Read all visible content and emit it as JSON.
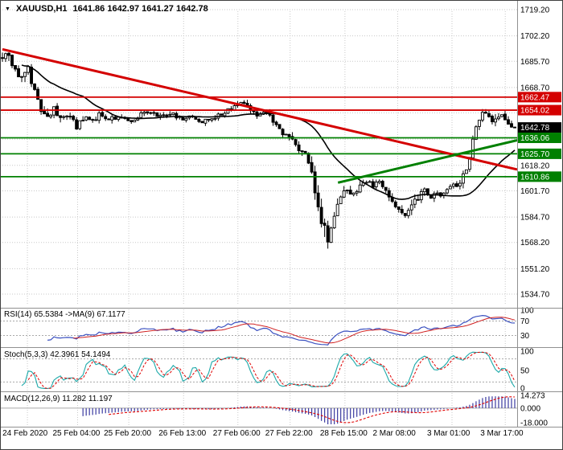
{
  "header": {
    "symbol": "XAUUSD,H1",
    "ohlc": "1641.86 1642.97 1641.27 1642.78"
  },
  "colors": {
    "up": "#ffffff",
    "down": "#000000",
    "wick": "#000000",
    "ma": "#000000",
    "resistance": "#d40000",
    "support": "#008000",
    "badge_current_bg": "#000000",
    "badge_text": "#ffffff",
    "rsi": "#3a50c0",
    "rsi_ma": "#d02020",
    "stoch_k": "#1ca9a9",
    "stoch_d": "#e00000",
    "macd_hist": "#3a3aa0",
    "macd_signal": "#e00000",
    "grid": "#c8c8c8",
    "level_dash": "#a8a8a8",
    "separator": "#909090",
    "border": "#404040"
  },
  "price_axis": {
    "grid_prices": [
      1719.2,
      1702.2,
      1685.7,
      1668.7,
      1652.2,
      1635.2,
      1618.2,
      1601.7,
      1584.7,
      1568.2,
      1551.2,
      1534.7
    ],
    "labels": [
      {
        "text": "1719.20",
        "price": 1719.2
      },
      {
        "text": "1702.20",
        "price": 1702.2
      },
      {
        "text": "1685.70",
        "price": 1685.7
      },
      {
        "text": "1668.70",
        "price": 1668.7
      },
      {
        "text": "1618.20",
        "price": 1618.2
      },
      {
        "text": "1601.70",
        "price": 1601.7
      },
      {
        "text": "1584.70",
        "price": 1584.7
      },
      {
        "text": "1568.20",
        "price": 1568.2
      },
      {
        "text": "1551.20",
        "price": 1551.2
      },
      {
        "text": "1534.70",
        "price": 1534.7
      }
    ],
    "badges": [
      {
        "text": "1662.47",
        "price": 1662.47,
        "bg": "#d40000",
        "role": "resistance"
      },
      {
        "text": "1654.02",
        "price": 1654.02,
        "bg": "#d40000",
        "role": "resistance"
      },
      {
        "text": "1642.78",
        "price": 1642.78,
        "bg": "#000000",
        "role": "current-price"
      },
      {
        "text": "1636.06",
        "price": 1636.06,
        "bg": "#008000",
        "role": "support"
      },
      {
        "text": "1625.70",
        "price": 1625.7,
        "bg": "#008000",
        "role": "support"
      },
      {
        "text": "1610.86",
        "price": 1610.86,
        "bg": "#008000",
        "role": "support"
      }
    ]
  },
  "time_axis": {
    "labels": [
      "24 Feb 2020",
      "25 Feb 04:00",
      "25 Feb 20:00",
      "26 Feb 13:00",
      "27 Feb 06:00",
      "27 Feb 22:00",
      "28 Feb 15:00",
      "2 Mar 08:00",
      "3 Mar 01:00",
      "3 Mar 17:00"
    ],
    "fractions": [
      0.053,
      0.15,
      0.249,
      0.355,
      0.46,
      0.561,
      0.667,
      0.769,
      0.874,
      0.977
    ]
  },
  "indicators": {
    "rsi": {
      "label": "RSI(14) 65.5384 ->MA(9) 67.1177",
      "value": 65.5384,
      "ma_value": 67.1177,
      "period": 14,
      "ma_period": 9,
      "levels": [
        30,
        70
      ],
      "axis_labels": [
        {
          "text": "100",
          "value": 100
        },
        {
          "text": "70",
          "value": 70
        },
        {
          "text": "30",
          "value": 30
        }
      ]
    },
    "stoch": {
      "label": "Stoch(5,3,3) 42.3961 54.1494",
      "k_value": 42.3961,
      "d_value": 54.1494,
      "params": [
        5,
        3,
        3
      ],
      "levels": [
        20,
        80
      ],
      "axis_labels": [
        {
          "text": "100",
          "value": 100
        },
        {
          "text": "50",
          "value": 50
        },
        {
          "text": "0",
          "value": 0
        }
      ]
    },
    "macd": {
      "label": "MACD(12,26,9) 11.282 11.197",
      "value": 11.282,
      "signal_value": 11.197,
      "params": [
        12,
        26,
        9
      ],
      "range": [
        -18,
        14.273
      ],
      "axis_labels": [
        {
          "text": "14.273",
          "value": 14.273
        },
        {
          "text": "0.000",
          "value": 0
        },
        {
          "text": "-18.000",
          "value": -18
        }
      ]
    }
  },
  "chart_data": {
    "type": "candlestick",
    "symbol": "XAUUSD",
    "timeframe": "H1",
    "title": "XAUUSD,H1 1641.86 1642.97 1641.27 1642.78",
    "current_ohlc": {
      "open": 1641.86,
      "high": 1642.97,
      "low": 1641.27,
      "close": 1642.78
    },
    "visible_price_range": [
      1534.7,
      1719.2
    ],
    "bars_visible": 160,
    "time_range": [
      "24 Feb 2020",
      "3 Mar 17:00"
    ],
    "resistance_levels": [
      1662.47,
      1654.02
    ],
    "support_levels": [
      1636.06,
      1625.7,
      1610.86
    ],
    "trendlines": [
      {
        "role": "descending-resistance",
        "color": "#d40000",
        "width": 3,
        "points_frac_price": [
          [
            0,
            1693.5
          ],
          [
            1.01,
            1615.5
          ]
        ]
      },
      {
        "role": "ascending-support",
        "color": "#008000",
        "width": 3,
        "points_frac_price": [
          [
            0.655,
            1607
          ],
          [
            1.02,
            1634.5
          ]
        ]
      }
    ],
    "price_path": [
      [
        0.0,
        1688
      ],
      [
        0.01,
        1692
      ],
      [
        0.022,
        1681
      ],
      [
        0.035,
        1677
      ],
      [
        0.048,
        1683
      ],
      [
        0.06,
        1670
      ],
      [
        0.072,
        1656
      ],
      [
        0.085,
        1649
      ],
      [
        0.1,
        1655
      ],
      [
        0.115,
        1647
      ],
      [
        0.13,
        1651
      ],
      [
        0.145,
        1643
      ],
      [
        0.16,
        1650
      ],
      [
        0.175,
        1646
      ],
      [
        0.19,
        1652
      ],
      [
        0.21,
        1648
      ],
      [
        0.23,
        1650
      ],
      [
        0.25,
        1647
      ],
      [
        0.27,
        1651
      ],
      [
        0.29,
        1653
      ],
      [
        0.31,
        1650
      ],
      [
        0.33,
        1652
      ],
      [
        0.35,
        1648
      ],
      [
        0.37,
        1650
      ],
      [
        0.39,
        1646
      ],
      [
        0.41,
        1649
      ],
      [
        0.43,
        1652
      ],
      [
        0.455,
        1656
      ],
      [
        0.47,
        1659
      ],
      [
        0.485,
        1653
      ],
      [
        0.5,
        1650
      ],
      [
        0.515,
        1652
      ],
      [
        0.53,
        1647
      ],
      [
        0.545,
        1640
      ],
      [
        0.56,
        1636
      ],
      [
        0.575,
        1630
      ],
      [
        0.59,
        1625
      ],
      [
        0.6,
        1619
      ],
      [
        0.61,
        1604
      ],
      [
        0.62,
        1588
      ],
      [
        0.63,
        1575
      ],
      [
        0.638,
        1570
      ],
      [
        0.646,
        1582
      ],
      [
        0.655,
        1594
      ],
      [
        0.665,
        1600
      ],
      [
        0.675,
        1603
      ],
      [
        0.685,
        1598
      ],
      [
        0.695,
        1602
      ],
      [
        0.705,
        1607
      ],
      [
        0.715,
        1609
      ],
      [
        0.725,
        1605
      ],
      [
        0.735,
        1608
      ],
      [
        0.745,
        1603
      ],
      [
        0.755,
        1598
      ],
      [
        0.765,
        1592
      ],
      [
        0.775,
        1588
      ],
      [
        0.785,
        1583
      ],
      [
        0.795,
        1590
      ],
      [
        0.805,
        1595
      ],
      [
        0.815,
        1599
      ],
      [
        0.825,
        1602
      ],
      [
        0.835,
        1598
      ],
      [
        0.845,
        1601
      ],
      [
        0.855,
        1597
      ],
      [
        0.865,
        1602
      ],
      [
        0.875,
        1606
      ],
      [
        0.885,
        1604
      ],
      [
        0.895,
        1609
      ],
      [
        0.905,
        1617
      ],
      [
        0.915,
        1630
      ],
      [
        0.925,
        1642
      ],
      [
        0.935,
        1650
      ],
      [
        0.945,
        1653
      ],
      [
        0.955,
        1644
      ],
      [
        0.965,
        1649
      ],
      [
        0.975,
        1652
      ],
      [
        0.985,
        1645
      ],
      [
        1.0,
        1642.78
      ]
    ],
    "volatility_path": [
      [
        0,
        3.2
      ],
      [
        0.05,
        3.6
      ],
      [
        0.09,
        2.6
      ],
      [
        0.2,
        1.8
      ],
      [
        0.4,
        1.7
      ],
      [
        0.5,
        1.8
      ],
      [
        0.56,
        2.4
      ],
      [
        0.6,
        3.5
      ],
      [
        0.625,
        6.5
      ],
      [
        0.645,
        5.0
      ],
      [
        0.68,
        2.6
      ],
      [
        0.75,
        2.2
      ],
      [
        0.79,
        2.8
      ],
      [
        0.86,
        1.8
      ],
      [
        0.905,
        3.2
      ],
      [
        0.935,
        3.6
      ],
      [
        0.97,
        2.2
      ],
      [
        1,
        1.4
      ]
    ]
  }
}
